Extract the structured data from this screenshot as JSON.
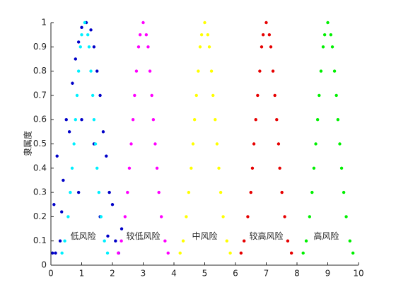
{
  "chart_data": {
    "type": "scatter",
    "ylabel": "隶属度",
    "annotations": [
      "低风险",
      "较低风险",
      "中风险",
      "较高风险",
      "高风险"
    ],
    "xlim": [
      0,
      10
    ],
    "xticks": [
      0,
      1,
      2,
      3,
      4,
      5,
      6,
      7,
      8,
      9,
      10
    ],
    "ylim": [
      0,
      1
    ],
    "yticks": [
      0,
      0.1,
      0.2,
      0.3,
      0.4,
      0.5,
      0.6,
      0.7,
      0.8,
      0.9,
      1
    ],
    "series": [
      {
        "color": "#0000c8",
        "x": [
          0.05,
          0.1,
          0.3,
          0.2,
          0.4,
          0.5,
          0.6,
          0.7,
          0.8,
          0.9,
          1.0,
          1.15,
          1.3,
          1.4,
          1.5,
          1.6,
          1.7,
          1.8,
          1.9,
          2.0,
          2.1,
          2.2,
          1.0,
          1.4,
          0.9,
          1.6,
          0.15,
          2.3,
          0.35,
          1.85
        ],
        "y": [
          0.05,
          0.25,
          0.1,
          0.45,
          0.35,
          0.6,
          0.55,
          0.75,
          0.85,
          0.92,
          0.98,
          1.0,
          0.97,
          0.9,
          0.8,
          0.7,
          0.55,
          0.45,
          0.3,
          0.25,
          0.1,
          0.05,
          0.6,
          0.5,
          0.3,
          0.2,
          0.05,
          0.15,
          0.22,
          0.12
        ]
      },
      {
        "color": "#00f0ff",
        "x": [
          0.36,
          0.45,
          0.56,
          0.63,
          0.69,
          0.75,
          0.8,
          0.85,
          0.9,
          0.96,
          1.0,
          1.1,
          1.2,
          1.24,
          1.3,
          1.36,
          1.4,
          1.45,
          1.5,
          1.56,
          1.63,
          1.74,
          1.84
        ],
        "y": [
          0.05,
          0.1,
          0.2,
          0.3,
          0.4,
          0.5,
          0.6,
          0.7,
          0.8,
          0.9,
          0.95,
          1,
          0.95,
          0.9,
          0.8,
          0.7,
          0.6,
          0.5,
          0.4,
          0.3,
          0.2,
          0.1,
          0.05
        ]
      },
      {
        "color": "#ff00ff",
        "x": [
          2.19,
          2.29,
          2.41,
          2.49,
          2.55,
          2.61,
          2.67,
          2.72,
          2.78,
          2.85,
          2.9,
          3.0,
          3.1,
          3.16,
          3.22,
          3.28,
          3.33,
          3.39,
          3.45,
          3.51,
          3.59,
          3.71,
          3.81
        ],
        "y": [
          0.05,
          0.1,
          0.2,
          0.3,
          0.4,
          0.5,
          0.6,
          0.7,
          0.8,
          0.9,
          0.95,
          1,
          0.95,
          0.9,
          0.8,
          0.7,
          0.6,
          0.5,
          0.4,
          0.3,
          0.2,
          0.1,
          0.05
        ]
      },
      {
        "color": "#ffff00",
        "x": [
          4.2,
          4.3,
          4.4,
          4.48,
          4.56,
          4.62,
          4.67,
          4.73,
          4.79,
          4.85,
          4.9,
          5.0,
          5.1,
          5.15,
          5.22,
          5.27,
          5.34,
          5.4,
          5.46,
          5.52,
          5.6,
          5.72,
          5.83
        ],
        "y": [
          0.05,
          0.1,
          0.2,
          0.3,
          0.4,
          0.5,
          0.6,
          0.7,
          0.8,
          0.9,
          0.95,
          1,
          0.95,
          0.9,
          0.8,
          0.7,
          0.6,
          0.5,
          0.4,
          0.3,
          0.2,
          0.1,
          0.05
        ]
      },
      {
        "color": "#e60000",
        "x": [
          6.18,
          6.28,
          6.4,
          6.5,
          6.55,
          6.6,
          6.66,
          6.72,
          6.79,
          6.85,
          6.9,
          7.0,
          7.1,
          7.15,
          7.22,
          7.28,
          7.34,
          7.4,
          7.44,
          7.51,
          7.6,
          7.7,
          7.82
        ],
        "y": [
          0.05,
          0.1,
          0.2,
          0.3,
          0.4,
          0.5,
          0.6,
          0.7,
          0.8,
          0.9,
          0.95,
          1,
          0.95,
          0.9,
          0.8,
          0.7,
          0.6,
          0.5,
          0.4,
          0.3,
          0.2,
          0.1,
          0.05
        ]
      },
      {
        "color": "#00f000",
        "x": [
          8.2,
          8.3,
          8.41,
          8.49,
          8.55,
          8.61,
          8.67,
          8.72,
          8.78,
          8.85,
          8.9,
          9.0,
          9.1,
          9.15,
          9.22,
          9.28,
          9.33,
          9.39,
          9.45,
          9.52,
          9.6,
          9.72,
          9.82
        ],
        "y": [
          0.05,
          0.1,
          0.2,
          0.3,
          0.4,
          0.5,
          0.6,
          0.7,
          0.8,
          0.9,
          0.95,
          1,
          0.95,
          0.9,
          0.8,
          0.7,
          0.6,
          0.5,
          0.4,
          0.3,
          0.2,
          0.1,
          0.05
        ]
      }
    ]
  }
}
